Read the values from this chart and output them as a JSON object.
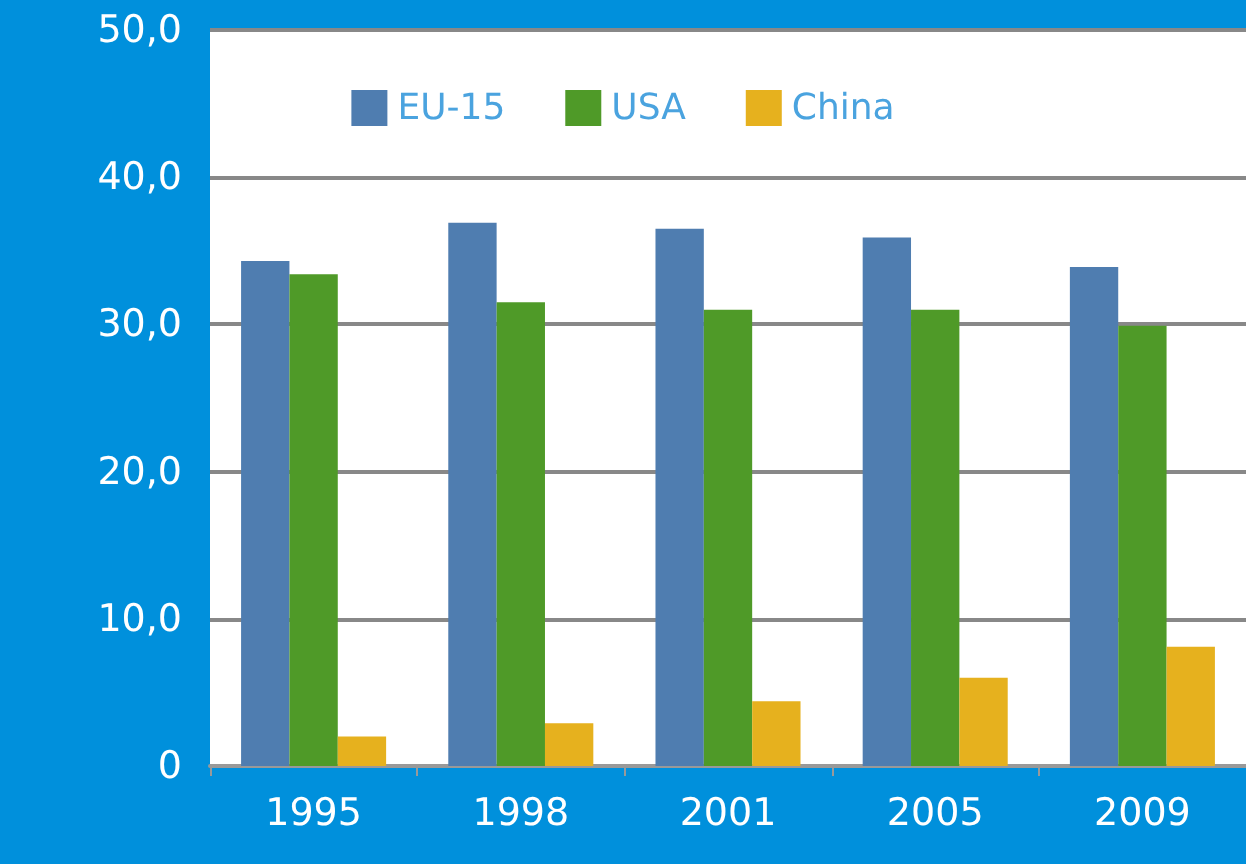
{
  "chart_data": {
    "type": "bar",
    "categories": [
      "1995",
      "1998",
      "2001",
      "2005",
      "2009"
    ],
    "series": [
      {
        "name": "EU-15",
        "color": "#4f7db0",
        "values": [
          34.3,
          36.9,
          36.5,
          35.9,
          33.9
        ]
      },
      {
        "name": "USA",
        "color": "#4f9a28",
        "values": [
          33.4,
          31.5,
          31.0,
          31.0,
          29.9
        ]
      },
      {
        "name": "China",
        "color": "#e6b11e",
        "values": [
          2.0,
          2.9,
          4.4,
          6.0,
          8.1
        ]
      }
    ],
    "ylim": [
      0,
      50
    ],
    "yticks": [
      {
        "value": 0,
        "label": "0"
      },
      {
        "value": 10,
        "label": "10,0"
      },
      {
        "value": 20,
        "label": "20,0"
      },
      {
        "value": 30,
        "label": "30,0"
      },
      {
        "value": 40,
        "label": "40,0"
      },
      {
        "value": 50,
        "label": "50,0"
      }
    ],
    "grid": "y",
    "legend": "top"
  }
}
